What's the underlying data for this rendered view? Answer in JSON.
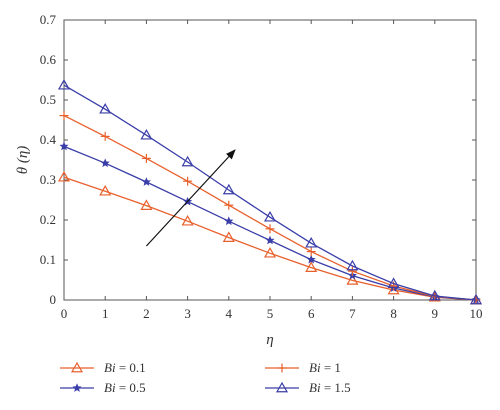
{
  "chart_data": {
    "type": "line",
    "xlabel": "η",
    "ylabel": "θ (η)",
    "xlim": [
      0,
      10
    ],
    "ylim": [
      0,
      0.7
    ],
    "x_ticks": [
      "0",
      "1",
      "2",
      "3",
      "4",
      "5",
      "6",
      "7",
      "8",
      "9",
      "10"
    ],
    "y_ticks": [
      "0",
      "0.1",
      "0.2",
      "0.3",
      "0.4",
      "0.5",
      "0.6",
      "0.7"
    ],
    "grid": false,
    "legend_position": "bottom",
    "annotation": "arrow indicating increasing Bi",
    "x": [
      0,
      1,
      2,
      3,
      4,
      5,
      6,
      7,
      8,
      9,
      10
    ],
    "series": [
      {
        "name": "Bi = 0.1",
        "legend_var": "Bi",
        "legend_val": " = 0.1",
        "color": "#e8602c",
        "marker": "triangle",
        "values": [
          0.307,
          0.272,
          0.236,
          0.197,
          0.156,
          0.117,
          0.081,
          0.049,
          0.025,
          0.007,
          0.0
        ]
      },
      {
        "name": "Bi = 0.5",
        "legend_var": "Bi",
        "legend_val": " = 0.5",
        "color": "#3a3ea8",
        "marker": "star",
        "values": [
          0.384,
          0.342,
          0.295,
          0.246,
          0.197,
          0.149,
          0.101,
          0.061,
          0.03,
          0.008,
          0.0
        ]
      },
      {
        "name": "Bi = 1",
        "legend_var": "Bi",
        "legend_val": " = 1",
        "color": "#e8602c",
        "marker": "plus",
        "values": [
          0.461,
          0.409,
          0.354,
          0.297,
          0.237,
          0.178,
          0.121,
          0.072,
          0.035,
          0.009,
          0.0
        ]
      },
      {
        "name": "Bi = 1.5",
        "legend_var": "Bi",
        "legend_val": " = 1.5",
        "color": "#3a3ea8",
        "marker": "triangle",
        "values": [
          0.537,
          0.477,
          0.412,
          0.345,
          0.275,
          0.207,
          0.142,
          0.085,
          0.041,
          0.01,
          0.0
        ]
      }
    ]
  }
}
